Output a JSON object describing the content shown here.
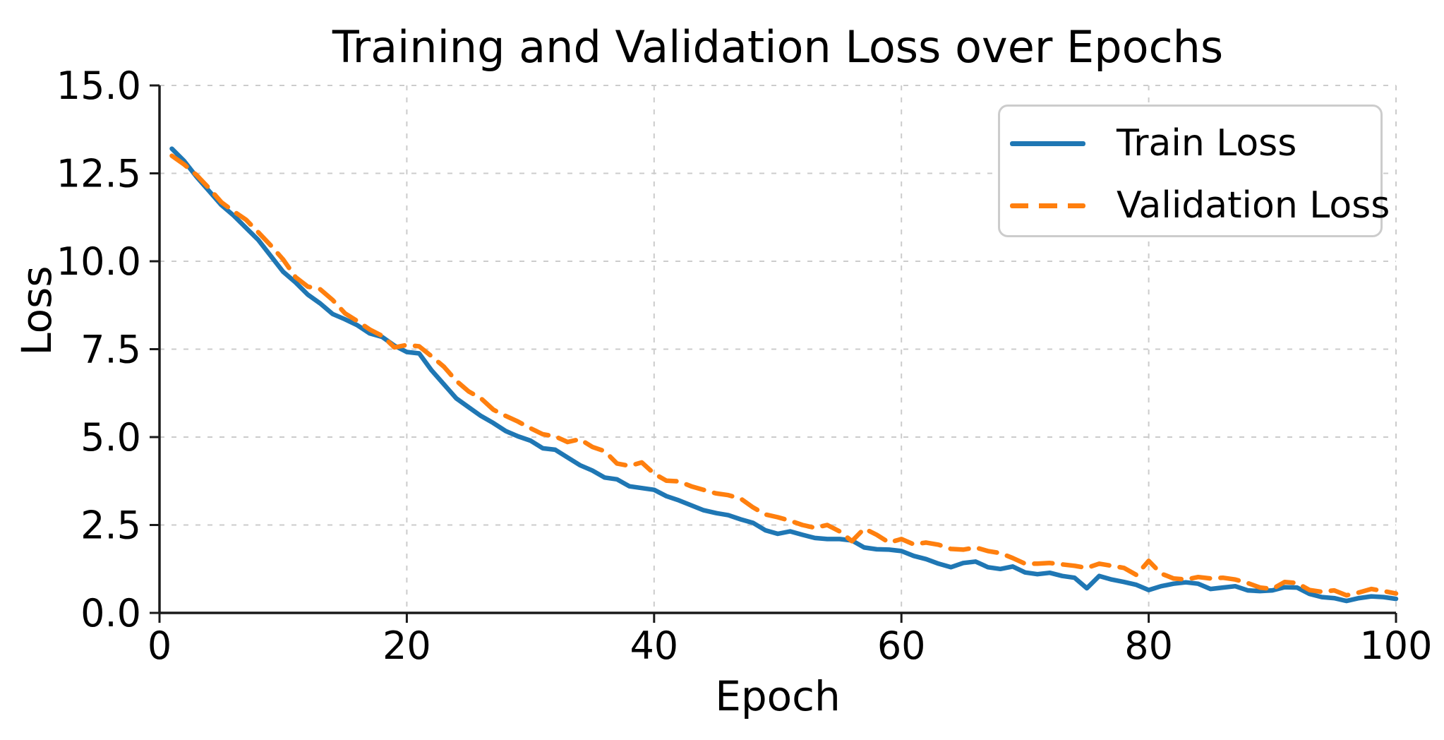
{
  "chart_data": {
    "type": "line",
    "title": "Training and Validation Loss over Epochs",
    "xlabel": "Epoch",
    "ylabel": "Loss",
    "xlim": [
      0,
      100
    ],
    "ylim": [
      0,
      15
    ],
    "x_ticks": [
      0,
      20,
      40,
      60,
      80,
      100
    ],
    "x_tick_labels": [
      "0",
      "20",
      "40",
      "60",
      "80",
      "100"
    ],
    "y_ticks": [
      0,
      2.5,
      5,
      7.5,
      10,
      12.5,
      15
    ],
    "y_tick_labels": [
      "0.0",
      "2.5",
      "5.0",
      "7.5",
      "10.0",
      "12.5",
      "15.0"
    ],
    "grid": true,
    "grid_color": "#cccccc",
    "spine_color": "#1a1a1a",
    "legend_position": "upper right",
    "x_start_epoch": 1,
    "series": [
      {
        "name": "Train Loss",
        "color": "#1f77b4",
        "style": "solid",
        "values": [
          13.2,
          12.85,
          12.4,
          12.0,
          11.6,
          11.3,
          10.95,
          10.6,
          10.15,
          9.7,
          9.4,
          9.05,
          8.8,
          8.5,
          8.35,
          8.18,
          7.95,
          7.85,
          7.6,
          7.42,
          7.38,
          6.9,
          6.5,
          6.1,
          5.85,
          5.6,
          5.4,
          5.17,
          5.02,
          4.9,
          4.68,
          4.64,
          4.42,
          4.2,
          4.05,
          3.85,
          3.8,
          3.6,
          3.55,
          3.5,
          3.32,
          3.2,
          3.06,
          2.92,
          2.84,
          2.78,
          2.66,
          2.56,
          2.35,
          2.25,
          2.32,
          2.22,
          2.13,
          2.1,
          2.1,
          2.06,
          1.86,
          1.81,
          1.8,
          1.76,
          1.62,
          1.53,
          1.4,
          1.3,
          1.42,
          1.46,
          1.3,
          1.25,
          1.32,
          1.15,
          1.1,
          1.14,
          1.05,
          1.0,
          0.7,
          1.05,
          0.95,
          0.88,
          0.8,
          0.65,
          0.76,
          0.83,
          0.87,
          0.83,
          0.68,
          0.72,
          0.76,
          0.64,
          0.62,
          0.64,
          0.73,
          0.72,
          0.54,
          0.45,
          0.42,
          0.34,
          0.42,
          0.47,
          0.45,
          0.4
        ]
      },
      {
        "name": "Validation Loss",
        "color": "#ff7f0e",
        "style": "dashed",
        "values": [
          13.0,
          12.75,
          12.45,
          12.08,
          11.68,
          11.42,
          11.18,
          10.82,
          10.45,
          10.05,
          9.55,
          9.28,
          9.2,
          8.9,
          8.52,
          8.3,
          8.06,
          7.88,
          7.55,
          7.62,
          7.58,
          7.3,
          7.0,
          6.6,
          6.3,
          6.1,
          5.78,
          5.6,
          5.44,
          5.25,
          5.08,
          5.02,
          4.86,
          4.94,
          4.72,
          4.6,
          4.25,
          4.18,
          4.28,
          3.96,
          3.76,
          3.74,
          3.6,
          3.5,
          3.4,
          3.35,
          3.25,
          3.0,
          2.8,
          2.72,
          2.62,
          2.5,
          2.42,
          2.5,
          2.32,
          2.04,
          2.4,
          2.22,
          2.0,
          2.1,
          1.95,
          2.0,
          1.94,
          1.82,
          1.8,
          1.86,
          1.76,
          1.7,
          1.56,
          1.4,
          1.4,
          1.42,
          1.38,
          1.34,
          1.28,
          1.4,
          1.34,
          1.28,
          1.08,
          1.48,
          1.12,
          0.98,
          0.95,
          1.02,
          0.98,
          1.0,
          0.95,
          0.85,
          0.72,
          0.68,
          0.88,
          0.85,
          0.65,
          0.6,
          0.64,
          0.5,
          0.58,
          0.68,
          0.62,
          0.55
        ]
      }
    ]
  },
  "legend": {
    "items": [
      {
        "label": "Train Loss"
      },
      {
        "label": "Validation Loss"
      }
    ]
  }
}
